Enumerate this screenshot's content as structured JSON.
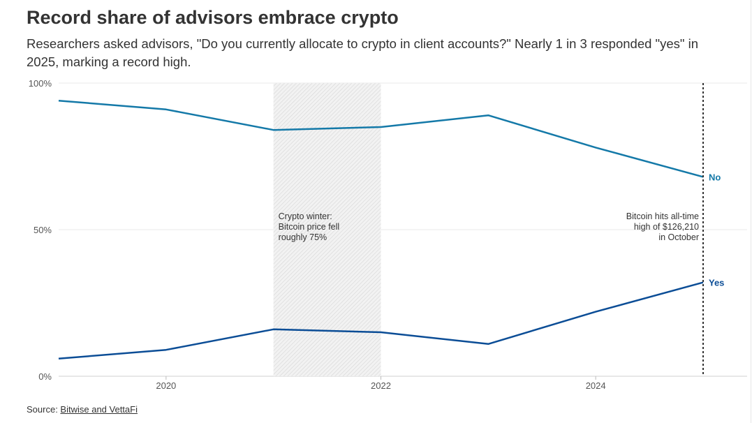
{
  "title": "Record share of advisors embrace crypto",
  "subtitle": "Researchers asked advisors, \"Do you currently allocate to crypto in client accounts?\" Nearly 1 in 3 responded \"yes\" in 2025, marking a record high.",
  "source": {
    "prefix": "Source: ",
    "link": "Bitwise and VettaFi"
  },
  "chart_data": {
    "type": "line",
    "x": [
      2019,
      2020,
      2021,
      2022,
      2023,
      2024,
      2025
    ],
    "xlim": [
      2019,
      2025
    ],
    "ylim": [
      0,
      100
    ],
    "x_ticks": [
      "2020",
      "2022",
      "2024"
    ],
    "y_ticks": [
      "0%",
      "50%",
      "100%"
    ],
    "grid": "horizontal",
    "series": [
      {
        "name": "No",
        "color": "#1479a8",
        "values": [
          94,
          91,
          84,
          85,
          89,
          78,
          68
        ]
      },
      {
        "name": "Yes",
        "color": "#0b4d96",
        "values": [
          6,
          9,
          16,
          15,
          11,
          22,
          32
        ]
      }
    ],
    "annotations": [
      {
        "type": "shaded-range",
        "x_range": [
          2021,
          2022
        ],
        "lines": [
          "Crypto winter:",
          "Bitcoin price fell",
          "roughly 75%"
        ]
      },
      {
        "type": "vertical-line",
        "x": 2025,
        "lines": [
          "Bitcoin hits all-time",
          "high of $126,210",
          "in October"
        ]
      }
    ]
  }
}
